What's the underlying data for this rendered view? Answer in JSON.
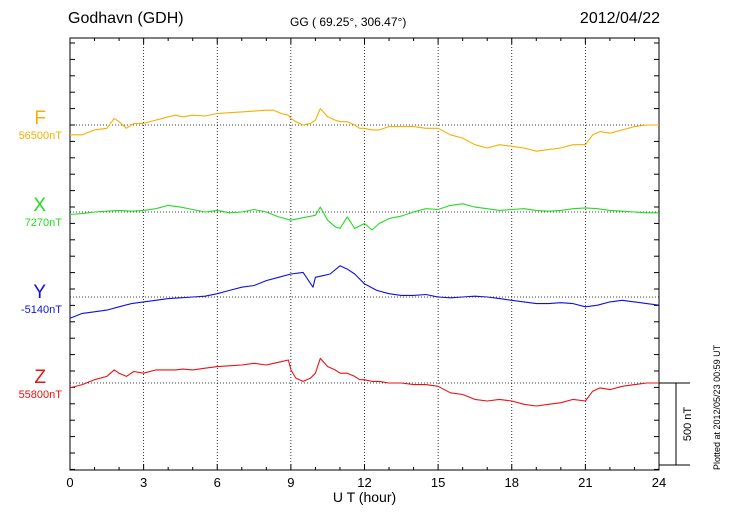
{
  "header": {
    "station": "Godhavn (GDH)",
    "coords": "GG ( 69.25°, 306.47°)",
    "date": "2012/04/22"
  },
  "plotted_note": "Plotted at 2012/05/23 00:59 UT",
  "chart_data": {
    "type": "line",
    "xlabel": "U T (hour)",
    "xlim": [
      0,
      24
    ],
    "xticks": [
      0,
      3,
      6,
      9,
      12,
      15,
      18,
      21,
      24
    ],
    "grid": true,
    "scale_bar_label": "500 nT",
    "scale_bar_nT": 500,
    "series": [
      {
        "name": "F",
        "baseline_label": "56500nT",
        "baseline_nT": 56500,
        "color": "#f5b000",
        "x": [
          0,
          0.5,
          1,
          1.5,
          1.8,
          2,
          2.3,
          2.6,
          3,
          3.5,
          4,
          4.3,
          4.6,
          5,
          5.5,
          6,
          6.5,
          7,
          7.5,
          8,
          8.3,
          8.6,
          8.9,
          9,
          9.2,
          9.5,
          9.8,
          10,
          10.2,
          10.5,
          10.8,
          11,
          11.3,
          11.6,
          11.8,
          12,
          12.3,
          12.6,
          13,
          13.5,
          14,
          14.5,
          15,
          15.5,
          16,
          16.5,
          17,
          17.5,
          18,
          18.5,
          19,
          19.5,
          20,
          20.5,
          21,
          21.3,
          21.6,
          22,
          22.5,
          23,
          23.5,
          24
        ],
        "y": [
          56440,
          56440,
          56470,
          56480,
          56540,
          56520,
          56480,
          56510,
          56510,
          56530,
          56550,
          56560,
          56550,
          56560,
          56555,
          56570,
          56575,
          56580,
          56585,
          56590,
          56590,
          56570,
          56560,
          56540,
          56520,
          56500,
          56510,
          56530,
          56600,
          56550,
          56530,
          56520,
          56520,
          56500,
          56480,
          56480,
          56470,
          56470,
          56490,
          56490,
          56490,
          56480,
          56480,
          56440,
          56420,
          56380,
          56360,
          56380,
          56370,
          56360,
          56340,
          56350,
          56360,
          56380,
          56380,
          56440,
          56460,
          56450,
          56470,
          56490,
          56500,
          56500
        ]
      },
      {
        "name": "X",
        "baseline_label": "7270nT",
        "baseline_nT": 7270,
        "color": "#22dd22",
        "x": [
          0,
          0.5,
          1,
          1.5,
          2,
          2.5,
          3,
          3.5,
          4,
          4.5,
          5,
          5.5,
          6,
          6.5,
          7,
          7.5,
          8,
          8.5,
          9,
          9.5,
          10,
          10.2,
          10.5,
          10.8,
          11,
          11.3,
          11.6,
          12,
          12.3,
          12.6,
          13,
          13.5,
          14,
          14.5,
          15,
          15.5,
          16,
          16.5,
          17,
          17.5,
          18,
          18.5,
          19,
          19.5,
          20,
          20.5,
          21,
          21.5,
          22,
          22.5,
          23,
          23.5,
          24
        ],
        "y": [
          7255,
          7260,
          7270,
          7275,
          7280,
          7275,
          7280,
          7290,
          7310,
          7300,
          7285,
          7270,
          7280,
          7265,
          7270,
          7285,
          7270,
          7240,
          7220,
          7235,
          7250,
          7300,
          7220,
          7180,
          7170,
          7240,
          7170,
          7200,
          7160,
          7200,
          7230,
          7245,
          7270,
          7290,
          7285,
          7310,
          7320,
          7300,
          7290,
          7280,
          7285,
          7290,
          7280,
          7275,
          7280,
          7290,
          7295,
          7290,
          7280,
          7275,
          7270,
          7265,
          7265
        ]
      },
      {
        "name": "Y",
        "baseline_label": "-5140nT",
        "baseline_nT": -5140,
        "color": "#1010dd",
        "x": [
          0,
          0.5,
          1,
          1.5,
          2,
          2.5,
          3,
          3.5,
          4,
          4.5,
          5,
          5.5,
          6,
          6.5,
          7,
          7.5,
          8,
          8.5,
          9,
          9.5,
          9.9,
          10,
          10.3,
          10.6,
          11,
          11.3,
          11.6,
          12,
          12.5,
          13,
          13.5,
          14,
          14.5,
          15,
          15.5,
          16,
          16.5,
          17,
          17.5,
          18,
          18.5,
          19,
          19.5,
          20,
          20.5,
          21,
          21.5,
          22,
          22.5,
          23,
          23.5,
          24
        ],
        "y": [
          -5270,
          -5240,
          -5230,
          -5220,
          -5200,
          -5180,
          -5170,
          -5160,
          -5150,
          -5145,
          -5140,
          -5135,
          -5120,
          -5100,
          -5080,
          -5070,
          -5040,
          -5020,
          -5000,
          -4990,
          -5080,
          -5020,
          -5010,
          -5000,
          -4950,
          -4970,
          -5000,
          -5060,
          -5100,
          -5120,
          -5130,
          -5130,
          -5125,
          -5140,
          -5145,
          -5140,
          -5135,
          -5140,
          -5150,
          -5160,
          -5170,
          -5180,
          -5180,
          -5175,
          -5180,
          -5200,
          -5190,
          -5170,
          -5160,
          -5170,
          -5180,
          -5190
        ]
      },
      {
        "name": "Z",
        "baseline_label": "55800nT",
        "baseline_nT": 55800,
        "color": "#ee1111",
        "x": [
          0,
          0.5,
          1,
          1.5,
          1.8,
          2,
          2.3,
          2.6,
          3,
          3.5,
          4,
          4.3,
          4.6,
          5,
          5.5,
          6,
          6.5,
          7,
          7.5,
          8,
          8.3,
          8.6,
          8.9,
          9,
          9.2,
          9.5,
          9.8,
          10,
          10.2,
          10.5,
          10.8,
          11,
          11.3,
          11.6,
          11.8,
          12,
          12.3,
          12.6,
          13,
          13.5,
          14,
          14.5,
          15,
          15.5,
          16,
          16.5,
          17,
          17.5,
          18,
          18.5,
          19,
          19.5,
          20,
          20.5,
          21,
          21.3,
          21.6,
          22,
          22.5,
          23,
          23.5,
          24
        ],
        "y": [
          55770,
          55790,
          55820,
          55840,
          55880,
          55860,
          55840,
          55870,
          55860,
          55880,
          55880,
          55880,
          55885,
          55880,
          55890,
          55900,
          55905,
          55910,
          55920,
          55910,
          55920,
          55930,
          55940,
          55880,
          55830,
          55810,
          55830,
          55860,
          55950,
          55900,
          55880,
          55860,
          55860,
          55840,
          55820,
          55820,
          55810,
          55810,
          55800,
          55800,
          55790,
          55790,
          55780,
          55740,
          55730,
          55700,
          55690,
          55700,
          55690,
          55670,
          55660,
          55670,
          55680,
          55700,
          55690,
          55750,
          55770,
          55760,
          55780,
          55790,
          55800,
          55800
        ]
      }
    ]
  }
}
